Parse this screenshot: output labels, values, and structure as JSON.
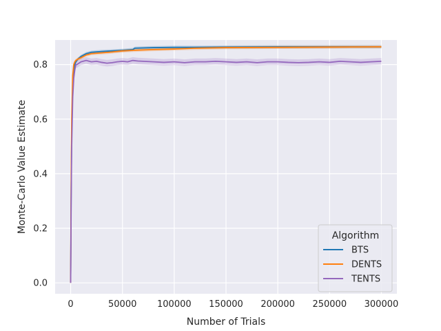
{
  "chart_data": {
    "type": "line",
    "title": "",
    "xlabel": "Number of Trials",
    "ylabel": "Monte-Carlo Value Estimate",
    "xlim": [
      -15000,
      315000
    ],
    "ylim": [
      -0.04,
      0.89
    ],
    "xticks": [
      0,
      50000,
      100000,
      150000,
      200000,
      250000,
      300000
    ],
    "xtick_labels": [
      "0",
      "50000",
      "100000",
      "150000",
      "200000",
      "250000",
      "300000"
    ],
    "yticks": [
      0.0,
      0.2,
      0.4,
      0.6,
      0.8
    ],
    "ytick_labels": [
      "0.0",
      "0.2",
      "0.4",
      "0.6",
      "0.8"
    ],
    "grid": true,
    "background": "#eaeaf2",
    "legend": {
      "title": "Algorithm",
      "placement": "lower-right"
    },
    "series": [
      {
        "name": "BTS",
        "color": "#1f77b4",
        "x": [
          0,
          500,
          1000,
          2000,
          3000,
          4000,
          5000,
          7000,
          10000,
          15000,
          20000,
          30000,
          40000,
          50000,
          60000,
          62000,
          70000,
          80000,
          100000,
          120000,
          150000,
          200000,
          250000,
          300000
        ],
        "y": [
          0.0,
          0.35,
          0.55,
          0.72,
          0.78,
          0.8,
          0.81,
          0.82,
          0.83,
          0.84,
          0.845,
          0.848,
          0.85,
          0.852,
          0.855,
          0.86,
          0.861,
          0.862,
          0.863,
          0.863,
          0.864,
          0.865,
          0.865,
          0.865
        ],
        "band": 0.006
      },
      {
        "name": "DENTS",
        "color": "#ff7f0e",
        "x": [
          0,
          500,
          1000,
          2000,
          3000,
          4000,
          5000,
          7000,
          10000,
          15000,
          20000,
          30000,
          40000,
          50000,
          60000,
          80000,
          100000,
          120000,
          150000,
          200000,
          250000,
          300000
        ],
        "y": [
          0.0,
          0.4,
          0.6,
          0.76,
          0.8,
          0.81,
          0.815,
          0.82,
          0.825,
          0.835,
          0.84,
          0.843,
          0.846,
          0.85,
          0.852,
          0.855,
          0.857,
          0.86,
          0.862,
          0.863,
          0.864,
          0.865
        ],
        "band": 0.006
      },
      {
        "name": "TENTS",
        "color": "#9467bd",
        "x": [
          0,
          500,
          1000,
          2000,
          3000,
          4000,
          5000,
          6000,
          8000,
          10000,
          15000,
          20000,
          25000,
          30000,
          35000,
          40000,
          45000,
          50000,
          55000,
          60000,
          65000,
          70000,
          80000,
          90000,
          100000,
          110000,
          120000,
          130000,
          140000,
          150000,
          160000,
          170000,
          180000,
          190000,
          200000,
          210000,
          220000,
          230000,
          240000,
          250000,
          260000,
          270000,
          280000,
          290000,
          300000
        ],
        "y": [
          0.0,
          0.3,
          0.5,
          0.68,
          0.75,
          0.78,
          0.8,
          0.8,
          0.805,
          0.81,
          0.815,
          0.81,
          0.812,
          0.808,
          0.805,
          0.807,
          0.81,
          0.812,
          0.81,
          0.815,
          0.813,
          0.812,
          0.81,
          0.808,
          0.81,
          0.807,
          0.81,
          0.81,
          0.812,
          0.81,
          0.808,
          0.81,
          0.807,
          0.81,
          0.81,
          0.808,
          0.807,
          0.808,
          0.81,
          0.808,
          0.812,
          0.81,
          0.808,
          0.81,
          0.812
        ],
        "band": 0.012
      }
    ]
  }
}
